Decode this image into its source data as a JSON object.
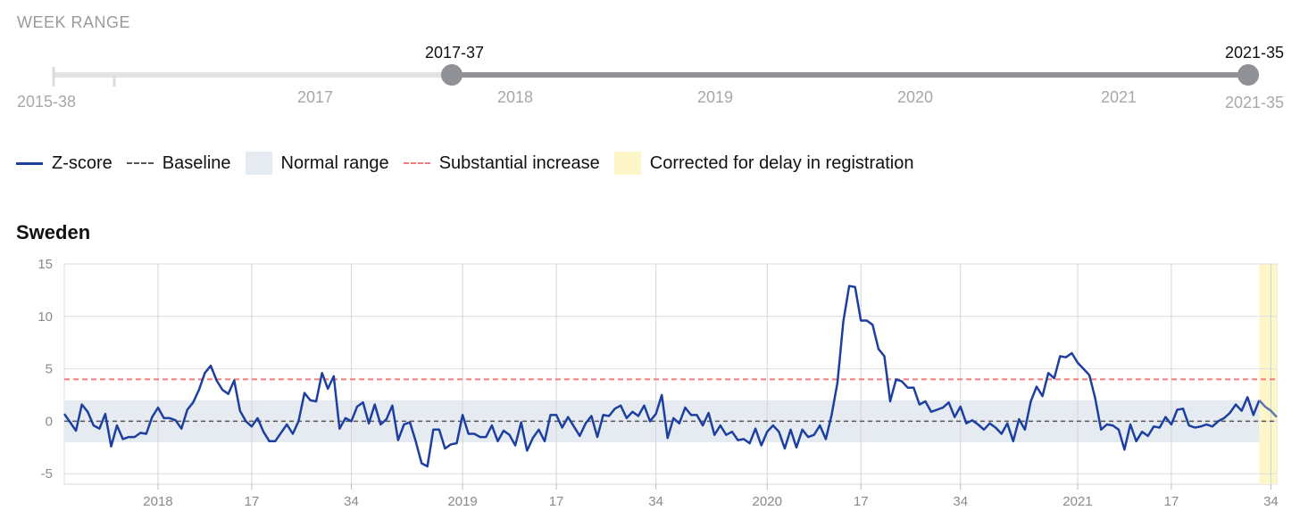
{
  "week_range": {
    "label": "WEEK RANGE",
    "range_min": "2015-38",
    "range_max": "2021-35",
    "selected_start": "2017-37",
    "selected_end": "2021-35",
    "year_ticks": [
      "2017",
      "2018",
      "2019",
      "2020",
      "2021"
    ]
  },
  "legend": {
    "items": [
      {
        "label": "Z-score",
        "kind": "line",
        "color": "#1c3fa0"
      },
      {
        "label": "Baseline",
        "kind": "dash",
        "color": "#555555"
      },
      {
        "label": "Normal range",
        "kind": "box",
        "color": "#e6ebf2"
      },
      {
        "label": "Substantial increase",
        "kind": "dash",
        "color": "#f27c7c"
      },
      {
        "label": "Corrected for delay in registration",
        "kind": "box",
        "color": "#fdf6c8"
      }
    ]
  },
  "chart_title": "Sweden",
  "chart_data": {
    "type": "line",
    "title": "Sweden",
    "xlabel": "",
    "ylabel": "",
    "ylim": [
      -6,
      15
    ],
    "yticks": [
      15,
      10,
      5,
      0,
      -5
    ],
    "x_start_week": "2017-37",
    "x_end_week": "2021-35",
    "x_tick_labels": [
      "2018",
      "17",
      "34",
      "2019",
      "17",
      "34",
      "2020",
      "17",
      "34",
      "2021",
      "17",
      "34"
    ],
    "baseline": 0,
    "normal_range": [
      -2,
      2
    ],
    "substantial_increase": 4,
    "series": [
      {
        "name": "Z-score",
        "color": "#1c3fa0",
        "values": [
          0.7,
          -0.1,
          -0.9,
          1.6,
          0.9,
          -0.4,
          -0.7,
          0.7,
          -2.4,
          -0.4,
          -1.7,
          -1.5,
          -1.5,
          -1.1,
          -1.2,
          0.4,
          1.3,
          0.3,
          0.3,
          0.1,
          -0.7,
          1.1,
          1.8,
          3.0,
          4.6,
          5.3,
          3.9,
          3.0,
          2.6,
          3.9,
          1.0,
          0.0,
          -0.5,
          0.3,
          -1.0,
          -1.9,
          -1.9,
          -1.1,
          -0.3,
          -1.2,
          0.0,
          2.7,
          2.0,
          1.9,
          4.6,
          3.1,
          4.3,
          -0.7,
          0.3,
          0.0,
          1.4,
          1.8,
          -0.2,
          1.6,
          -0.3,
          0.2,
          1.5,
          -1.8,
          -0.3,
          -0.1,
          -1.9,
          -4.0,
          -4.3,
          -0.8,
          -0.8,
          -2.6,
          -2.2,
          -2.1,
          0.6,
          -1.2,
          -1.2,
          -1.5,
          -1.5,
          -0.4,
          -1.9,
          -0.9,
          -1.3,
          -2.3,
          -0.1,
          -2.8,
          -1.6,
          -0.8,
          -1.9,
          0.6,
          0.6,
          -0.6,
          0.4,
          -0.5,
          -1.4,
          -0.2,
          0.5,
          -1.5,
          0.6,
          0.5,
          1.2,
          1.5,
          0.3,
          0.9,
          0.5,
          1.5,
          0.0,
          0.7,
          2.5,
          -1.6,
          0.3,
          -0.2,
          1.3,
          0.6,
          0.6,
          -0.4,
          0.8,
          -1.3,
          -0.4,
          -1.3,
          -1.0,
          -1.8,
          -1.7,
          -2.1,
          -0.7,
          -2.3,
          -1.0,
          -0.4,
          -1.0,
          -2.6,
          -0.8,
          -2.5,
          -0.8,
          -1.5,
          -1.3,
          -0.4,
          -1.7,
          0.6,
          3.7,
          9.5,
          12.9,
          12.8,
          9.6,
          9.6,
          9.2,
          6.9,
          6.2,
          1.9,
          4.0,
          3.8,
          3.2,
          3.2,
          1.6,
          1.9,
          0.9,
          1.1,
          1.3,
          1.8,
          0.4,
          1.4,
          -0.2,
          0.1,
          -0.3,
          -0.8,
          -0.2,
          -0.6,
          -1.2,
          -0.2,
          -1.9,
          0.2,
          -0.8,
          1.9,
          3.3,
          2.4,
          4.6,
          4.1,
          6.2,
          6.1,
          6.5,
          5.6,
          5.0,
          4.4,
          2.2,
          -0.8,
          -0.3,
          -0.4,
          -0.8,
          -2.7,
          -0.3,
          -1.9,
          -1.0,
          -1.4,
          -0.5,
          -0.6,
          0.4,
          -0.3,
          1.1,
          1.2,
          -0.4,
          -0.6,
          -0.5,
          -0.3,
          -0.5,
          0.0,
          0.3,
          0.8,
          1.6,
          1.0,
          2.3,
          0.6,
          2.0,
          1.4,
          1.0,
          0.4
        ]
      }
    ],
    "corrected_weeks": 3
  }
}
